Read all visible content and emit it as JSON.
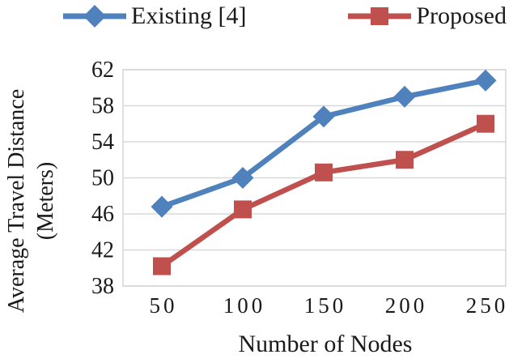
{
  "legend": {
    "items": [
      {
        "label": "Existing [4]"
      },
      {
        "label": "Proposed"
      }
    ]
  },
  "chart_data": {
    "type": "line",
    "title": "",
    "x": [
      50,
      100,
      150,
      200,
      250
    ],
    "xticks": [
      "50",
      "100",
      "150",
      "200",
      "250"
    ],
    "yticks": [
      38,
      42,
      46,
      50,
      54,
      58,
      62
    ],
    "ylim": [
      38,
      62
    ],
    "xlabel": "Number of Nodes",
    "ylabel_line1": "Average Travel Distance",
    "ylabel_line2": "(Meters)",
    "grid": "horizontal",
    "legend_position": "top",
    "series": [
      {
        "name": "Existing [4]",
        "marker": "diamond",
        "color": "#4F81BD",
        "values": [
          46.8,
          50.0,
          56.8,
          59.0,
          60.8
        ]
      },
      {
        "name": "Proposed",
        "marker": "square",
        "color": "#C0504D",
        "values": [
          40.2,
          46.5,
          50.6,
          52.0,
          56.0
        ]
      }
    ],
    "colors": {
      "existing": "#4F81BD",
      "proposed": "#C0504D",
      "gridline": "#D9D9D9",
      "plot_border": "#D6D6D6",
      "text": "#1A1A1A"
    }
  }
}
